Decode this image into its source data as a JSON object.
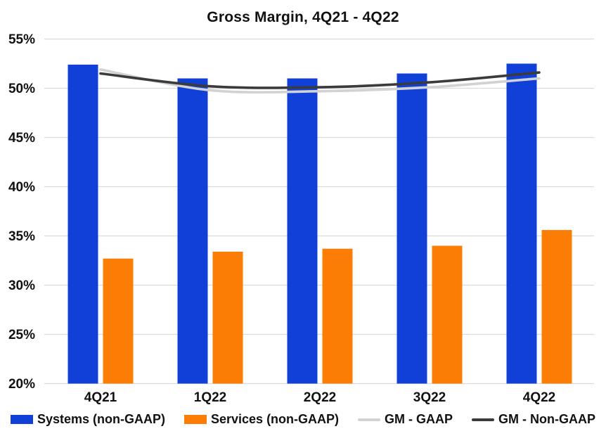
{
  "chart_data": {
    "type": "combo-bar-line",
    "title": "Gross Margin, 4Q21 - 4Q22",
    "categories": [
      "4Q21",
      "1Q22",
      "2Q22",
      "3Q22",
      "4Q22"
    ],
    "series": [
      {
        "name": "Systems (non-GAAP)",
        "type": "bar",
        "color": "#1140D9",
        "values": [
          52.4,
          51.0,
          51.0,
          51.5,
          52.5
        ]
      },
      {
        "name": "Services (non-GAAP)",
        "type": "bar",
        "color": "#FC7D05",
        "values": [
          32.7,
          33.4,
          33.7,
          34.0,
          35.6
        ]
      },
      {
        "name": "GM - GAAP",
        "type": "line",
        "color": "#D2D2D2",
        "values": [
          51.9,
          49.8,
          49.7,
          50.1,
          51.0
        ]
      },
      {
        "name": "GM - Non-GAAP",
        "type": "line",
        "color": "#3B3B3B",
        "values": [
          51.5,
          50.2,
          50.1,
          50.6,
          51.6
        ]
      }
    ],
    "xlabel": "",
    "ylabel": "",
    "ylim": [
      20,
      55
    ],
    "ytick_step": 5,
    "ytick_labels": [
      "20%",
      "25%",
      "30%",
      "35%",
      "40%",
      "45%",
      "50%",
      "55%"
    ],
    "grid": true,
    "gridline_color": "#DADADA",
    "legend_position": "bottom"
  }
}
